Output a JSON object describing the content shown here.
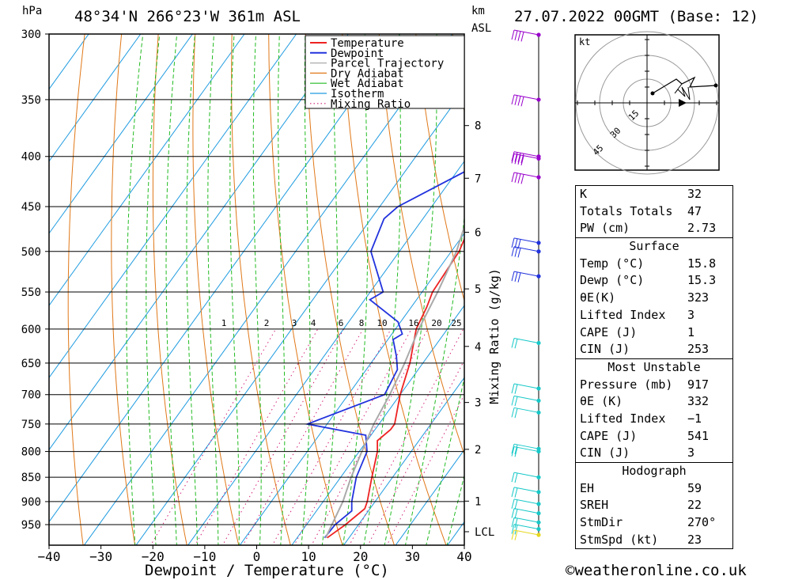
{
  "header": {
    "unit_left": "hPa",
    "location": "48°34'N 266°23'W 361m ASL",
    "unit_km": "km",
    "unit_asl": "ASL",
    "datetime": "27.07.2022 00GMT (Base: 12)"
  },
  "footer": {
    "credit": "©weatheronline.co.uk"
  },
  "chart_data": {
    "type": "line",
    "xlabel": "Dewpoint / Temperature (°C)",
    "ylabel": "hPa",
    "xlim": [
      -40,
      40
    ],
    "ylim": [
      1000,
      300
    ],
    "y_scale": "log-pressure",
    "x_ticks": [
      "−40",
      "−30",
      "−20",
      "−10",
      "0",
      "10",
      "20",
      "30",
      "40"
    ],
    "y_ticks": [
      300,
      350,
      400,
      450,
      500,
      550,
      600,
      650,
      700,
      750,
      800,
      850,
      900,
      950
    ],
    "km_axis_label": "Mixing Ratio (g/kg)",
    "km_ticks": [
      {
        "km": "8",
        "p": 372
      },
      {
        "km": "7",
        "p": 421
      },
      {
        "km": "6",
        "p": 478
      },
      {
        "km": "5",
        "p": 546
      },
      {
        "km": "4",
        "p": 625
      },
      {
        "km": "3",
        "p": 713
      },
      {
        "km": "2",
        "p": 796
      },
      {
        "km": "1",
        "p": 899
      },
      {
        "km": "LCL",
        "p": 966
      }
    ],
    "mixing_ratio_labels": [
      "1",
      "2",
      "3",
      "4",
      "6",
      "8",
      "10",
      "16",
      "20",
      "25"
    ],
    "legend": [
      "Temperature",
      "Dewpoint",
      "Parcel Trajectory",
      "Dry Adiabat",
      "Wet Adiabat",
      "Isotherm",
      "Mixing Ratio"
    ],
    "colors": {
      "temperature": "#ee2222",
      "dewpoint": "#2233dd",
      "parcel": "#aaaaaa",
      "dry": "#e07818",
      "wet": "#22bb22",
      "isotherm": "#1e9be0",
      "mixing": "#d4237a",
      "purple": "#9900cc",
      "cyan": "#18c8c8",
      "yellow": "#e6d820"
    },
    "series": [
      {
        "name": "Temperature",
        "points": [
          [
            15.8,
            980
          ],
          [
            17.5,
            950
          ],
          [
            19,
            915
          ],
          [
            18.5,
            900
          ],
          [
            16,
            850
          ],
          [
            13.5,
            800
          ],
          [
            12,
            780
          ],
          [
            13,
            760
          ],
          [
            13,
            750
          ],
          [
            10,
            700
          ],
          [
            7.5,
            650
          ],
          [
            4,
            600
          ],
          [
            3,
            570
          ],
          [
            2,
            550
          ],
          [
            1.5,
            500
          ],
          [
            0,
            470
          ],
          [
            -2,
            450
          ],
          [
            -4.5,
            420
          ],
          [
            -6.5,
            400
          ],
          [
            -10,
            370
          ],
          [
            -12,
            350
          ],
          [
            -15,
            330
          ],
          [
            -18,
            300
          ]
        ]
      },
      {
        "name": "Dewpoint",
        "points": [
          [
            15.3,
            980
          ],
          [
            15.5,
            950
          ],
          [
            16.8,
            920
          ],
          [
            15.5,
            900
          ],
          [
            13,
            850
          ],
          [
            11.5,
            800
          ],
          [
            9,
            770
          ],
          [
            -3.8,
            750
          ],
          [
            7,
            700
          ],
          [
            6,
            660
          ],
          [
            4,
            640
          ],
          [
            1,
            615
          ],
          [
            2,
            607
          ],
          [
            -0.5,
            590
          ],
          [
            -9,
            560
          ],
          [
            -7.5,
            550
          ],
          [
            -15.5,
            500
          ],
          [
            -17.5,
            463
          ],
          [
            -16.5,
            450
          ],
          [
            -5,
            400
          ],
          [
            -5.5,
            360
          ],
          [
            -7,
            350
          ],
          [
            -9,
            330
          ],
          [
            -14,
            300
          ]
        ]
      },
      {
        "name": "Parcel Trajectory",
        "points": [
          [
            15.5,
            980
          ],
          [
            13.8,
            900
          ],
          [
            12,
            850
          ],
          [
            10.5,
            800
          ],
          [
            9,
            750
          ],
          [
            8,
            700
          ],
          [
            6.5,
            650
          ],
          [
            4.5,
            600
          ],
          [
            3,
            550
          ],
          [
            1,
            500
          ],
          [
            -2.5,
            450
          ],
          [
            -6,
            400
          ],
          [
            -12,
            350
          ],
          [
            -20,
            300
          ]
        ]
      }
    ],
    "hodograph": {
      "unit": "kt",
      "ring_labels": [
        "15",
        "30",
        "45"
      ]
    },
    "indices": {
      "top": [
        {
          "label": "K",
          "value": "32"
        },
        {
          "label": "Totals Totals",
          "value": "47"
        },
        {
          "label": "PW (cm)",
          "value": "2.73"
        }
      ],
      "surface": {
        "title": "Surface",
        "rows": [
          {
            "label": "Temp (°C)",
            "value": "15.8"
          },
          {
            "label": "Dewp (°C)",
            "value": "15.3"
          },
          {
            "label": "θE(K)",
            "value": "323"
          },
          {
            "label": "Lifted Index",
            "value": "3"
          },
          {
            "label": "CAPE (J)",
            "value": "1"
          },
          {
            "label": "CIN (J)",
            "value": "253"
          }
        ]
      },
      "unstable": {
        "title": "Most Unstable",
        "rows": [
          {
            "label": "Pressure (mb)",
            "value": "917"
          },
          {
            "label": "θE (K)",
            "value": "332"
          },
          {
            "label": "Lifted Index",
            "value": "−1"
          },
          {
            "label": "CAPE (J)",
            "value": "541"
          },
          {
            "label": "CIN (J)",
            "value": "3"
          }
        ]
      },
      "hodo": {
        "title": "Hodograph",
        "rows": [
          {
            "label": "EH",
            "value": "59"
          },
          {
            "label": "SREH",
            "value": "22"
          },
          {
            "label": "StmDir",
            "value": "270°"
          },
          {
            "label": "StmSpd (kt)",
            "value": "23"
          }
        ]
      }
    }
  }
}
